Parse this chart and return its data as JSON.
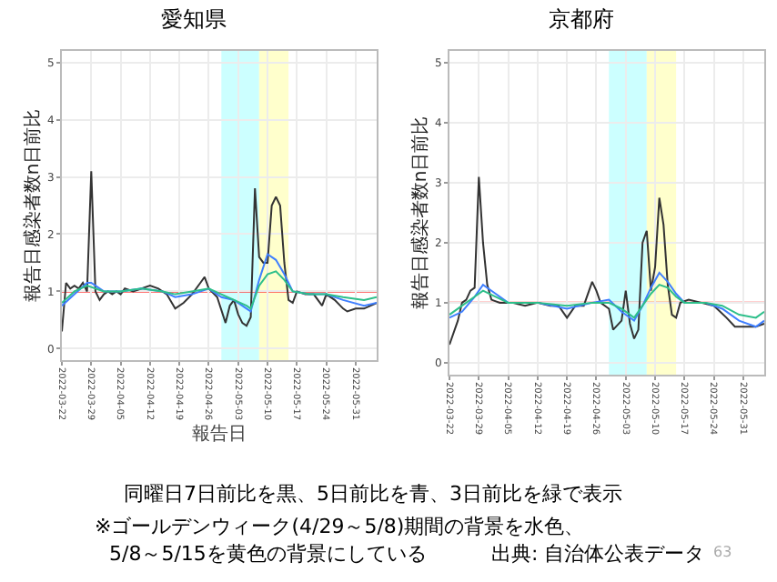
{
  "chart_data": [
    {
      "type": "line",
      "title": "愛知県",
      "xlabel": "報告日",
      "ylabel": "報告日感染者数n日前比",
      "xlim": [
        "2022-03-22",
        "2022-06-05"
      ],
      "xticks": [
        "2022-03-22",
        "2022-03-29",
        "2022-04-05",
        "2022-04-12",
        "2022-04-19",
        "2022-04-26",
        "2022-05-03",
        "2022-05-10",
        "2022-05-17",
        "2022-05-24",
        "2022-05-31"
      ],
      "ylim": [
        -0.2,
        5.2
      ],
      "yticks": [
        0,
        1,
        2,
        3,
        4,
        5
      ],
      "grid": true,
      "series": [
        {
          "color": "#333333",
          "x": [
            "2022-03-22",
            "2022-03-23",
            "2022-03-24",
            "2022-03-25",
            "2022-03-26",
            "2022-03-27",
            "2022-03-28",
            "2022-03-29",
            "2022-03-30",
            "2022-03-31",
            "2022-04-01",
            "2022-04-02",
            "2022-04-03",
            "2022-04-04",
            "2022-04-05",
            "2022-04-06",
            "2022-04-08",
            "2022-04-10",
            "2022-04-12",
            "2022-04-14",
            "2022-04-16",
            "2022-04-18",
            "2022-04-20",
            "2022-04-22",
            "2022-04-24",
            "2022-04-25",
            "2022-04-26",
            "2022-04-28",
            "2022-04-30",
            "2022-05-01",
            "2022-05-02",
            "2022-05-03",
            "2022-05-04",
            "2022-05-05",
            "2022-05-06",
            "2022-05-07",
            "2022-05-08",
            "2022-05-09",
            "2022-05-10",
            "2022-05-11",
            "2022-05-12",
            "2022-05-13",
            "2022-05-14",
            "2022-05-15",
            "2022-05-16",
            "2022-05-17",
            "2022-05-19",
            "2022-05-21",
            "2022-05-23",
            "2022-05-24",
            "2022-05-26",
            "2022-05-28",
            "2022-05-29",
            "2022-05-31",
            "2022-06-02",
            "2022-06-05"
          ],
          "values": [
            0.3,
            1.15,
            1.05,
            1.1,
            1.05,
            1.15,
            1.0,
            3.1,
            1.0,
            0.85,
            0.95,
            1.0,
            0.95,
            1.0,
            0.95,
            1.05,
            1.0,
            1.05,
            1.1,
            1.05,
            0.95,
            0.7,
            0.8,
            0.95,
            1.15,
            1.25,
            1.05,
            0.9,
            0.45,
            0.75,
            0.85,
            0.6,
            0.45,
            0.4,
            0.55,
            2.8,
            1.6,
            1.5,
            1.5,
            2.5,
            2.65,
            2.5,
            1.5,
            0.85,
            0.8,
            1.0,
            0.95,
            0.95,
            0.75,
            0.95,
            0.85,
            0.7,
            0.65,
            0.7,
            0.7,
            0.8
          ]
        },
        {
          "color": "#3f7fff",
          "x": [
            "2022-03-22",
            "2022-03-25",
            "2022-03-28",
            "2022-03-29",
            "2022-04-01",
            "2022-04-05",
            "2022-04-10",
            "2022-04-15",
            "2022-04-18",
            "2022-04-22",
            "2022-04-26",
            "2022-04-29",
            "2022-05-02",
            "2022-05-05",
            "2022-05-06",
            "2022-05-08",
            "2022-05-10",
            "2022-05-12",
            "2022-05-14",
            "2022-05-16",
            "2022-05-20",
            "2022-05-24",
            "2022-05-28",
            "2022-06-02",
            "2022-06-05"
          ],
          "values": [
            0.75,
            0.95,
            1.15,
            1.15,
            1.0,
            1.0,
            1.05,
            1.0,
            0.9,
            0.95,
            1.05,
            0.9,
            0.85,
            0.7,
            0.65,
            1.2,
            1.65,
            1.55,
            1.3,
            1.0,
            0.95,
            0.95,
            0.85,
            0.75,
            0.8
          ]
        },
        {
          "color": "#2dbf8a",
          "x": [
            "2022-03-22",
            "2022-03-25",
            "2022-03-28",
            "2022-04-01",
            "2022-04-05",
            "2022-04-10",
            "2022-04-15",
            "2022-04-18",
            "2022-04-22",
            "2022-04-26",
            "2022-04-29",
            "2022-05-02",
            "2022-05-05",
            "2022-05-06",
            "2022-05-08",
            "2022-05-10",
            "2022-05-12",
            "2022-05-14",
            "2022-05-16",
            "2022-05-20",
            "2022-05-24",
            "2022-05-28",
            "2022-06-02",
            "2022-06-05"
          ],
          "values": [
            0.8,
            1.0,
            1.1,
            1.0,
            1.0,
            1.05,
            1.0,
            0.95,
            1.0,
            1.05,
            0.95,
            0.85,
            0.75,
            0.7,
            1.1,
            1.3,
            1.35,
            1.2,
            1.0,
            0.95,
            0.95,
            0.9,
            0.85,
            0.9
          ]
        }
      ],
      "ref_lines": [
        {
          "axis": "y",
          "value": 1,
          "color": "#ff4444"
        }
      ],
      "bands": [
        {
          "axis": "x",
          "from": "2022-04-29",
          "to": "2022-05-08",
          "color": "#ccffff"
        },
        {
          "axis": "x",
          "from": "2022-05-08",
          "to": "2022-05-15",
          "color": "#ffffcc"
        }
      ],
      "annotations": [
        "同曜日7日前比を黒、5日前比を青、3日前比を緑で表示",
        "※ゴールデンウィーク(4/29～5/8)期間の背景を水色、",
        "5/8～5/15を黄色の背景にしている",
        "出典: 自治体公表データ",
        "63"
      ]
    },
    {
      "type": "line",
      "title": "京都府",
      "ylabel": "報告日感染者数n日前比",
      "xlim": [
        "2022-03-22",
        "2022-06-05"
      ],
      "xticks": [
        "2022-03-22",
        "2022-03-29",
        "2022-04-05",
        "2022-04-12",
        "2022-04-19",
        "2022-04-26",
        "2022-05-03",
        "2022-05-10",
        "2022-05-17",
        "2022-05-24",
        "2022-05-31"
      ],
      "ylim": [
        -0.2,
        5.2
      ],
      "yticks": [
        0,
        1,
        2,
        3,
        4,
        5
      ],
      "grid": true,
      "series": [
        {
          "color": "#333333",
          "x": [
            "2022-03-22",
            "2022-03-24",
            "2022-03-25",
            "2022-03-26",
            "2022-03-27",
            "2022-03-28",
            "2022-03-29",
            "2022-03-30",
            "2022-03-31",
            "2022-04-01",
            "2022-04-03",
            "2022-04-06",
            "2022-04-09",
            "2022-04-12",
            "2022-04-15",
            "2022-04-17",
            "2022-04-19",
            "2022-04-21",
            "2022-04-23",
            "2022-04-25",
            "2022-04-26",
            "2022-04-27",
            "2022-04-29",
            "2022-04-30",
            "2022-05-02",
            "2022-05-03",
            "2022-05-04",
            "2022-05-05",
            "2022-05-06",
            "2022-05-07",
            "2022-05-08",
            "2022-05-09",
            "2022-05-10",
            "2022-05-11",
            "2022-05-12",
            "2022-05-13",
            "2022-05-14",
            "2022-05-15",
            "2022-05-16",
            "2022-05-18",
            "2022-05-21",
            "2022-05-24",
            "2022-05-27",
            "2022-05-29",
            "2022-06-01",
            "2022-06-03",
            "2022-06-05"
          ],
          "values": [
            0.3,
            0.7,
            1.0,
            1.05,
            1.2,
            1.25,
            3.1,
            2.0,
            1.3,
            1.05,
            1.0,
            1.0,
            0.95,
            1.0,
            0.95,
            0.95,
            0.75,
            0.95,
            0.95,
            1.35,
            1.2,
            1.0,
            0.9,
            0.55,
            0.7,
            1.2,
            0.65,
            0.4,
            0.55,
            2.0,
            2.2,
            1.2,
            1.6,
            2.75,
            2.3,
            1.3,
            0.8,
            0.75,
            1.0,
            1.05,
            1.0,
            0.95,
            0.75,
            0.6,
            0.6,
            0.6,
            0.65
          ]
        },
        {
          "color": "#3f7fff",
          "x": [
            "2022-03-22",
            "2022-03-25",
            "2022-03-28",
            "2022-03-30",
            "2022-04-02",
            "2022-04-05",
            "2022-04-12",
            "2022-04-19",
            "2022-04-25",
            "2022-04-29",
            "2022-05-02",
            "2022-05-05",
            "2022-05-07",
            "2022-05-09",
            "2022-05-11",
            "2022-05-13",
            "2022-05-15",
            "2022-05-17",
            "2022-05-22",
            "2022-05-26",
            "2022-05-30",
            "2022-06-03",
            "2022-06-05"
          ],
          "values": [
            0.75,
            0.85,
            1.1,
            1.3,
            1.15,
            1.0,
            1.0,
            0.9,
            1.0,
            1.05,
            0.85,
            0.7,
            0.95,
            1.25,
            1.5,
            1.35,
            1.15,
            1.0,
            1.0,
            0.9,
            0.7,
            0.6,
            0.7
          ]
        },
        {
          "color": "#2dbf8a",
          "x": [
            "2022-03-22",
            "2022-03-25",
            "2022-03-28",
            "2022-03-30",
            "2022-04-02",
            "2022-04-05",
            "2022-04-12",
            "2022-04-19",
            "2022-04-25",
            "2022-04-29",
            "2022-05-02",
            "2022-05-05",
            "2022-05-07",
            "2022-05-09",
            "2022-05-11",
            "2022-05-13",
            "2022-05-15",
            "2022-05-17",
            "2022-05-22",
            "2022-05-26",
            "2022-05-30",
            "2022-06-03",
            "2022-06-05"
          ],
          "values": [
            0.8,
            0.95,
            1.1,
            1.2,
            1.1,
            1.0,
            1.0,
            0.95,
            1.0,
            1.0,
            0.9,
            0.75,
            0.95,
            1.15,
            1.3,
            1.25,
            1.1,
            1.0,
            1.0,
            0.95,
            0.8,
            0.75,
            0.85
          ]
        }
      ],
      "ref_lines": [
        {
          "axis": "y",
          "value": 1,
          "color": "#ff4444"
        }
      ],
      "bands": [
        {
          "axis": "x",
          "from": "2022-04-29",
          "to": "2022-05-08",
          "color": "#ccffff"
        },
        {
          "axis": "x",
          "from": "2022-05-08",
          "to": "2022-05-15",
          "color": "#ffffcc"
        }
      ]
    }
  ]
}
